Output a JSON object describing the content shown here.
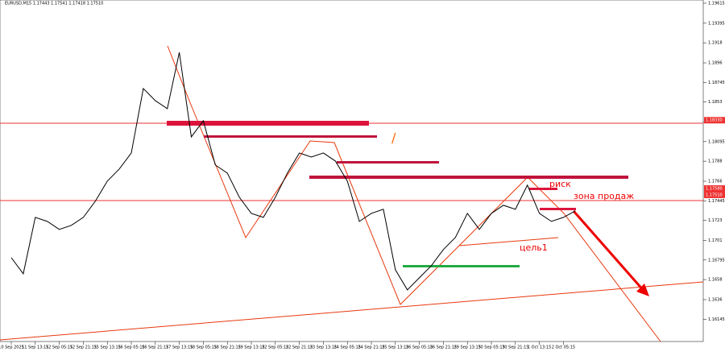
{
  "chart_data": {
    "type": "line",
    "title": "EURUSD,M15  1.17443 1.17541 1.17418 1.17510",
    "categories": [
      "10 Sep 2025",
      null,
      "11 Sep 13:15",
      null,
      "12 Sep 05:15",
      null,
      "12 Sep 21:15",
      null,
      "15 Sep 13:15",
      null,
      "16 Sep 05:15",
      null,
      "16 Sep 21:15",
      null,
      "17 Sep 13:15",
      null,
      "18 Sep 05:15",
      null,
      "18 Sep 21:15",
      null,
      "19 Sep 13:15",
      null,
      "22 Sep 05:15",
      null,
      "22 Sep 21:15",
      null,
      "23 Sep 13:15",
      null,
      "24 Sep 05:15",
      null,
      "24 Sep 21:15",
      null,
      "25 Sep 13:15",
      null,
      "26 Sep 05:15",
      null,
      "26 Sep 21:15",
      null,
      "29 Sep 13:15",
      null,
      "30 Sep 05:15",
      null,
      "30 Sep 21:15",
      null,
      "1 Oct 13:15",
      null,
      "2 Oct 05:15",
      null
    ],
    "series": [
      {
        "name": "EURUSD",
        "color": "#000000",
        "values": [
          1.16821,
          1.16644,
          1.17263,
          1.17219,
          1.17131,
          1.17175,
          1.17263,
          1.1744,
          1.17661,
          1.17794,
          1.1797,
          1.18678,
          1.18545,
          1.18457,
          1.19075,
          1.18147,
          1.18324,
          1.17838,
          1.17749,
          1.17484,
          1.17307,
          1.17263,
          1.17484,
          1.17749,
          1.1797,
          1.17926,
          1.1797,
          1.17882,
          1.17661,
          1.17219,
          1.17307,
          1.17352,
          1.16688,
          1.16467,
          1.166,
          1.16733,
          1.1691,
          1.17042,
          1.17307,
          1.17131,
          1.17307,
          1.17396,
          1.17352,
          1.17617,
          1.17307,
          1.17219,
          1.17263,
          1.17334
        ]
      }
    ],
    "ylim": [
      1.159,
      1.1965
    ],
    "yticks": [
      1.19615,
      1.19395,
      1.1918,
      1.1896,
      1.18745,
      1.1853,
      1.1831,
      1.18095,
      1.1788,
      1.1766,
      1.17445,
      1.1723,
      1.1701,
      1.16795,
      1.1658,
      1.1636,
      1.16145
    ],
    "price_marks": [
      {
        "value": 1.1833,
        "label": "1.18330"
      },
      {
        "value": 1.1758,
        "label": "1.17580"
      },
      {
        "value": 1.1751,
        "label": "1.17510"
      }
    ],
    "annotations": {
      "risk": "риск",
      "sell_zone": "зона продаж",
      "target": "цель1",
      "slash": "/"
    }
  }
}
